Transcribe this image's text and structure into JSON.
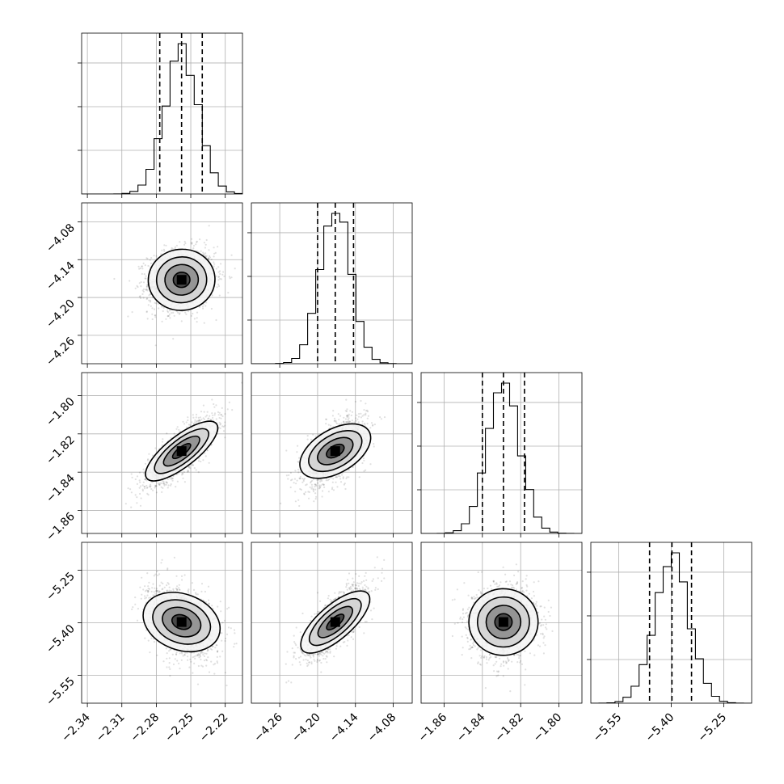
{
  "chart_data": {
    "type": "scatter",
    "subtype": "corner-plot",
    "parameters": [
      {
        "range": [
          -2.345,
          -2.205
        ],
        "ticks": [
          "−2.34",
          "−2.31",
          "−2.28",
          "−2.25",
          "−2.22"
        ],
        "tick_values": [
          -2.34,
          -2.31,
          -2.28,
          -2.25,
          -2.22
        ],
        "mean": -2.258,
        "sd": 0.0145,
        "quantiles": [
          -2.277,
          -2.258,
          -2.24
        ],
        "hist_axis_ticks": 3
      },
      {
        "range": [
          -4.305,
          -4.05
        ],
        "ticks": [
          "−4.26",
          "−4.20",
          "−4.14",
          "−4.08"
        ],
        "tick_values": [
          -4.26,
          -4.2,
          -4.14,
          -4.08
        ],
        "mean": -4.172,
        "sd": 0.024,
        "quantiles": [
          -4.2,
          -4.172,
          -4.143
        ],
        "hist_axis_ticks": 3
      },
      {
        "range": [
          -1.872,
          -1.788
        ],
        "ticks": [
          "−1.86",
          "−1.84",
          "−1.82",
          "−1.80"
        ],
        "tick_values": [
          -1.86,
          -1.84,
          -1.82,
          -1.8
        ],
        "mean": -1.829,
        "sd": 0.0085,
        "quantiles": [
          -1.84,
          -1.829,
          -1.818
        ],
        "hist_axis_ticks": 3
      },
      {
        "range": [
          -5.63,
          -5.17
        ],
        "ticks": [
          "−5.55",
          "−5.40",
          "−5.25"
        ],
        "tick_values": [
          -5.55,
          -5.4,
          -5.25
        ],
        "mean": -5.398,
        "sd": 0.05,
        "quantiles": [
          -5.462,
          -5.398,
          -5.342
        ],
        "hist_axis_ticks": 3
      }
    ],
    "correlations": [
      [
        1,
        0.1,
        0.8,
        -0.35
      ],
      [
        0.1,
        1,
        0.55,
        0.75
      ],
      [
        0.8,
        0.55,
        1,
        0.05
      ],
      [
        -0.35,
        0.75,
        0.05,
        1
      ]
    ],
    "hist_bins": 20,
    "contour_levels_sigma": [
      0.5,
      1.0,
      1.5,
      2.0
    ],
    "grid": true,
    "colors": {
      "points": "#000000",
      "lines": "#000000",
      "grid": "#b0b0b0"
    }
  }
}
